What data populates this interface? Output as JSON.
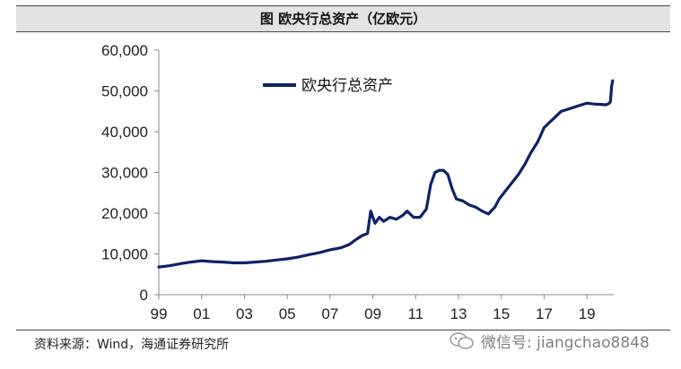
{
  "title": "图  欧央行总资产（亿欧元）",
  "source": "资料来源：Wind，海通证券研究所",
  "watermark": "微信号: jiangchao8848",
  "colors": {
    "series": "#0c2366",
    "axis": "#888888",
    "text": "#222222"
  },
  "chart_data": {
    "type": "line",
    "title": "图  欧央行总资产（亿欧元）",
    "xlabel": "",
    "ylabel": "",
    "ylim": [
      0,
      60000
    ],
    "xlim": [
      1999,
      2020.25
    ],
    "yticks": [
      0,
      10000,
      20000,
      30000,
      40000,
      50000,
      60000
    ],
    "ytick_labels": [
      "0",
      "10,000",
      "20,000",
      "30,000",
      "40,000",
      "50,000",
      "60,000"
    ],
    "xticks": [
      1999,
      2001,
      2003,
      2005,
      2007,
      2009,
      2011,
      2013,
      2015,
      2017,
      2019
    ],
    "xtick_labels": [
      "99",
      "01",
      "03",
      "05",
      "07",
      "09",
      "11",
      "13",
      "15",
      "17",
      "19"
    ],
    "grid": false,
    "legend": "top-left",
    "series": [
      {
        "name": "欧央行总资产",
        "x": [
          1999.0,
          1999.5,
          2000.0,
          2000.5,
          2001.0,
          2001.5,
          2002.0,
          2002.5,
          2003.0,
          2003.5,
          2004.0,
          2004.5,
          2005.0,
          2005.5,
          2006.0,
          2006.5,
          2007.0,
          2007.5,
          2007.9,
          2008.2,
          2008.5,
          2008.75,
          2008.9,
          2009.1,
          2009.3,
          2009.5,
          2009.8,
          2010.1,
          2010.4,
          2010.6,
          2010.9,
          2011.2,
          2011.5,
          2011.7,
          2011.9,
          2012.1,
          2012.3,
          2012.5,
          2012.7,
          2012.9,
          2013.2,
          2013.5,
          2013.8,
          2014.1,
          2014.4,
          2014.7,
          2014.9,
          2015.2,
          2015.5,
          2015.8,
          2016.1,
          2016.4,
          2016.7,
          2017.0,
          2017.2,
          2017.5,
          2017.8,
          2018.1,
          2018.4,
          2018.7,
          2019.0,
          2019.3,
          2019.6,
          2019.9,
          2020.05,
          2020.1,
          2020.15,
          2020.2
        ],
        "values": [
          6800,
          7100,
          7600,
          8000,
          8300,
          8100,
          8000,
          7800,
          7800,
          8000,
          8200,
          8500,
          8800,
          9200,
          9800,
          10300,
          11000,
          11500,
          12300,
          13500,
          14500,
          15000,
          20500,
          17500,
          19000,
          18000,
          19000,
          18500,
          19500,
          20500,
          19000,
          19000,
          21000,
          27000,
          30000,
          30500,
          30500,
          29500,
          26000,
          23500,
          23000,
          22000,
          21500,
          20500,
          19800,
          21500,
          23500,
          25500,
          27500,
          29500,
          32000,
          35000,
          37500,
          41000,
          42000,
          43500,
          45000,
          45500,
          46000,
          46500,
          47000,
          46800,
          46700,
          46600,
          47000,
          47500,
          51000,
          52500
        ]
      }
    ]
  }
}
